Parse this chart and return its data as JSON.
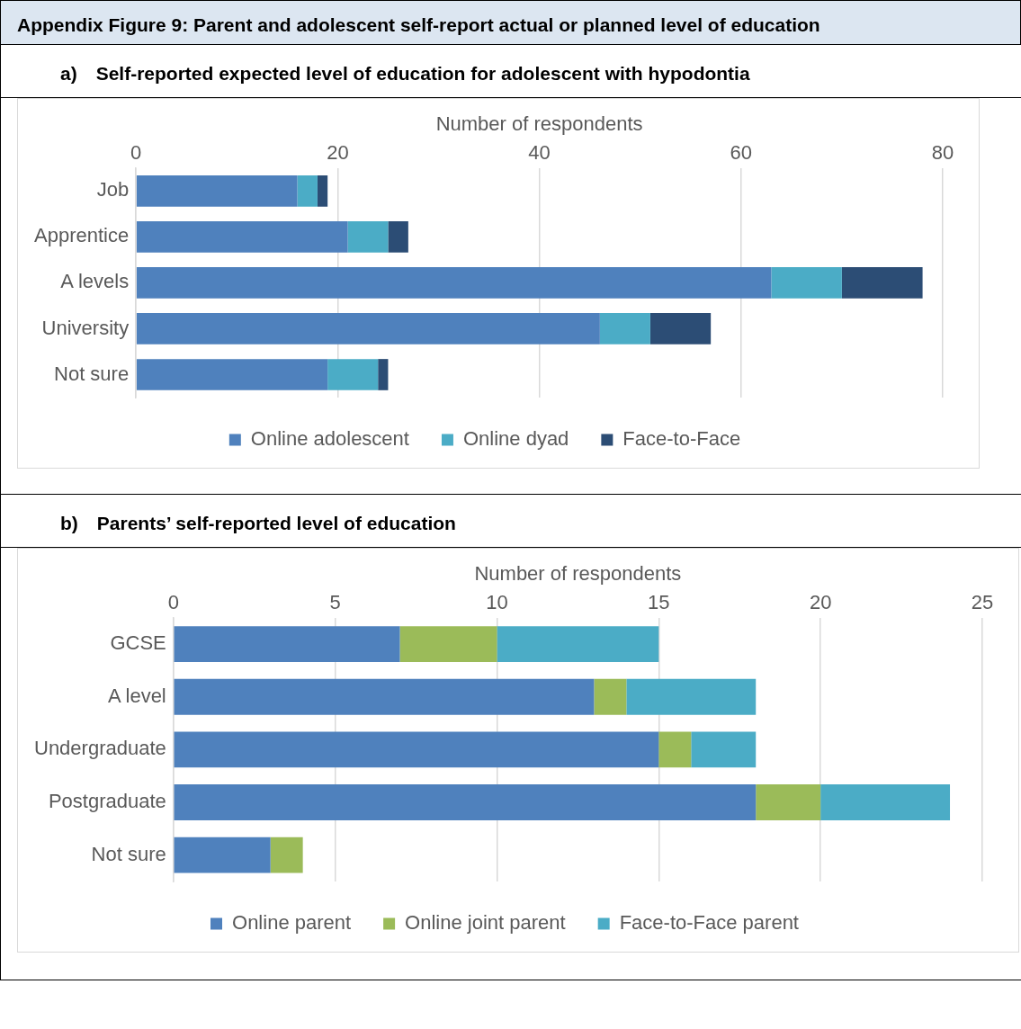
{
  "chart_data": [
    {
      "type": "bar",
      "title": "Appendix Figure 9: Parent and adolescent self-report actual or planned level of education",
      "subtitle": "a) Self-reported expected level of education for adolescent with hypodontia",
      "xlabel": "Number of respondents",
      "orientation": "horizontal",
      "stacked": true,
      "categories": [
        "Job",
        "Apprentice",
        "A levels",
        "University",
        "Not sure"
      ],
      "series": [
        {
          "name": "Online adolescent",
          "color": "#4f81bd",
          "values": [
            16,
            21,
            63,
            46,
            19
          ]
        },
        {
          "name": "Online dyad",
          "color": "#4bacc6",
          "values": [
            2,
            4,
            7,
            5,
            5
          ]
        },
        {
          "name": "Face-to-Face",
          "color": "#2c4d75",
          "values": [
            1,
            2,
            8,
            6,
            1
          ]
        }
      ],
      "xlim": [
        0,
        80
      ],
      "xticks": [
        0,
        20,
        40,
        60,
        80
      ],
      "grid": "x",
      "legend": "bottom"
    },
    {
      "type": "bar",
      "title": "b) Parents’ self-reported level of education",
      "xlabel": "Number of respondents",
      "orientation": "horizontal",
      "stacked": true,
      "categories": [
        "GCSE",
        "A level",
        "Undergraduate",
        "Postgraduate",
        "Not sure"
      ],
      "series": [
        {
          "name": "Online parent",
          "color": "#4f81bd",
          "values": [
            7,
            13,
            15,
            18,
            3
          ]
        },
        {
          "name": "Online joint parent",
          "color": "#9bbb59",
          "values": [
            3,
            1,
            1,
            2,
            1
          ]
        },
        {
          "name": "Face-to-Face parent",
          "color": "#4bacc6",
          "values": [
            5,
            4,
            2,
            4,
            0
          ]
        }
      ],
      "xlim": [
        0,
        25
      ],
      "xticks": [
        0,
        5,
        10,
        15,
        20,
        25
      ],
      "grid": "x",
      "legend": "bottom"
    }
  ]
}
